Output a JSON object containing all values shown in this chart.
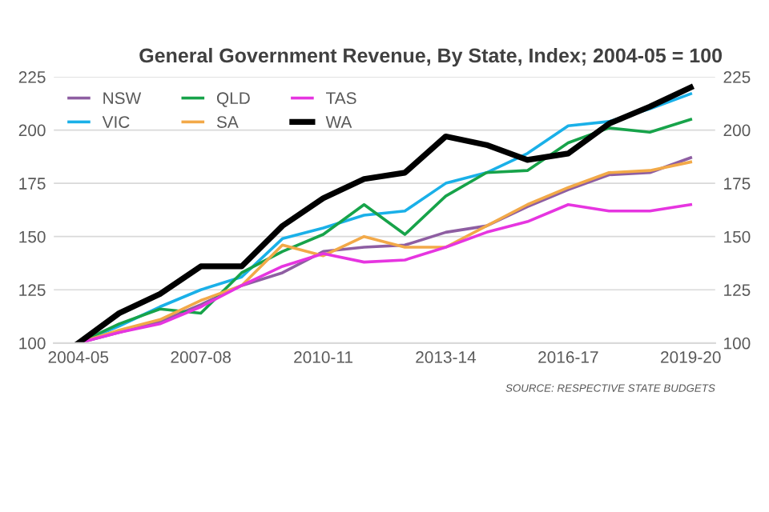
{
  "chart_data": {
    "type": "line",
    "title": "General Government Revenue, By State, Index; 2004-05 = 100",
    "categories": [
      "2004-05",
      null,
      null,
      "2007-08",
      null,
      null,
      "2010-11",
      null,
      null,
      "2013-14",
      null,
      null,
      "2016-17",
      null,
      null,
      "2019-20"
    ],
    "series": [
      {
        "name": "NSW",
        "color": "#8e5ea2",
        "values": [
          100,
          105,
          110,
          118,
          127,
          133,
          143,
          145,
          146,
          152,
          155,
          164,
          172,
          179,
          180,
          187
        ]
      },
      {
        "name": "VIC",
        "color": "#1ab0e8",
        "values": [
          100,
          108,
          117,
          125,
          131,
          149,
          154,
          160,
          162,
          175,
          180,
          189,
          202,
          204,
          210,
          217
        ]
      },
      {
        "name": "QLD",
        "color": "#17a34a",
        "values": [
          100,
          109,
          116,
          114,
          133,
          143,
          151,
          165,
          151,
          169,
          180,
          181,
          194,
          201,
          199,
          205
        ]
      },
      {
        "name": "SA",
        "color": "#f2a948",
        "values": [
          100,
          106,
          111,
          120,
          127,
          146,
          141,
          150,
          145,
          145,
          155,
          165,
          173,
          180,
          181,
          185
        ]
      },
      {
        "name": "TAS",
        "color": "#e635e0",
        "values": [
          100,
          105,
          109,
          117,
          127,
          136,
          142,
          138,
          139,
          145,
          152,
          157,
          165,
          162,
          162,
          165
        ]
      },
      {
        "name": "WA",
        "color": "#000000",
        "values": [
          100,
          114,
          123,
          136,
          136,
          155,
          168,
          177,
          180,
          197,
          193,
          186,
          189,
          203,
          211,
          220
        ]
      }
    ],
    "ylim": [
      100,
      225
    ],
    "yticks": [
      100,
      125,
      150,
      175,
      200,
      225
    ],
    "y2lim": [
      100,
      225
    ],
    "y2ticks": [
      100,
      125,
      150,
      175,
      200,
      225
    ],
    "grid": "y",
    "legend": "top left",
    "marker": "none",
    "line_style": "solid",
    "annotations": [
      "SOURCE: RESPECTIVE STATE BUDGETS"
    ]
  }
}
